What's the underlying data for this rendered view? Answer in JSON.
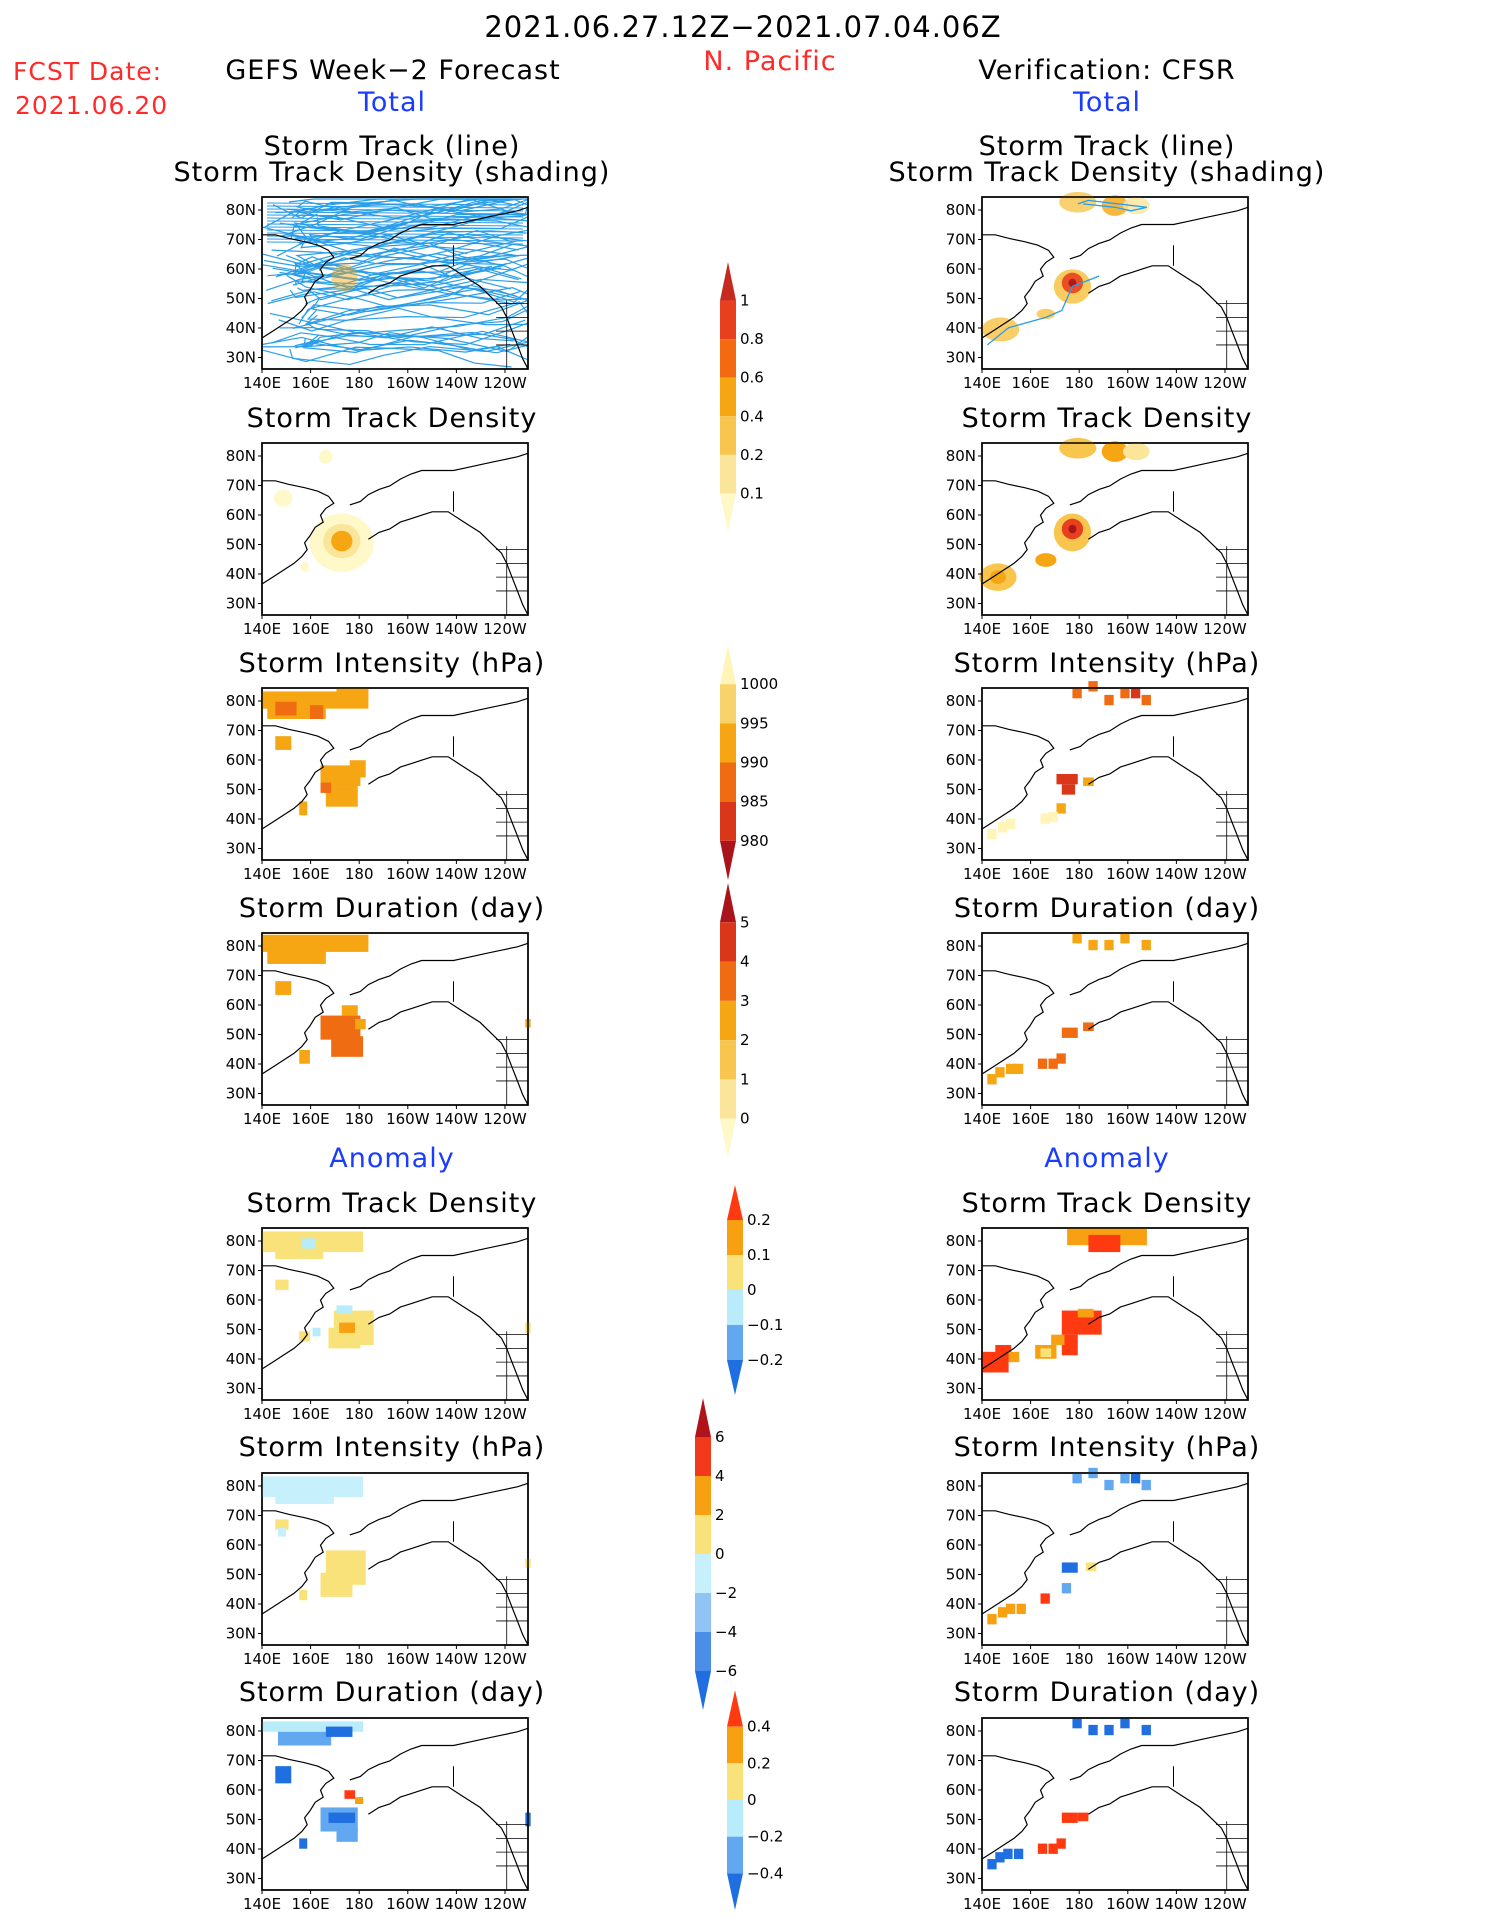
{
  "header": {
    "date_range": "2021.06.27.12Z−2021.07.04.06Z",
    "region": "N. Pacific",
    "fcst_label": "FCST Date:",
    "fcst_date": "2021.06.20",
    "left_title": "GEFS Week−2 Forecast",
    "right_title": "Verification: CFSR",
    "total_label": "Total",
    "anomaly_label": "Anomaly"
  },
  "panel_titles": {
    "track_line": "Storm Track (line)",
    "track_density_shading": "Storm Track Density (shading)",
    "track_density": "Storm Track Density",
    "intensity": "Storm Intensity (hPa)",
    "duration": "Storm Duration (day)"
  },
  "axes": {
    "lat_labels": [
      "80N",
      "70N",
      "60N",
      "50N",
      "40N",
      "30N"
    ],
    "lon_labels": [
      "140E",
      "160E",
      "180",
      "160W",
      "140W",
      "120W"
    ]
  },
  "colorbars": {
    "density_total": {
      "labels": [
        "1",
        "0.8",
        "0.6",
        "0.4",
        "0.2",
        "0.1"
      ],
      "colors": [
        "#c62a1e",
        "#e8401f",
        "#f46a10",
        "#f5a612",
        "#f8c64e",
        "#fbe59a",
        "#fff8c8"
      ]
    },
    "intensity_total": {
      "labels": [
        "1000",
        "995",
        "990",
        "985",
        "980"
      ],
      "colors": [
        "#fff5b8",
        "#f8d26a",
        "#f5a612",
        "#ef6c12",
        "#d9361a",
        "#a8141a"
      ]
    },
    "duration_total": {
      "labels": [
        "5",
        "4",
        "3",
        "2",
        "1",
        "0"
      ],
      "colors": [
        "#a8141a",
        "#d9361a",
        "#ef6c12",
        "#f5a612",
        "#f8c64e",
        "#fbe59a",
        "#fff8c8"
      ]
    },
    "density_anom": {
      "labels": [
        "0.2",
        "0.1",
        "0",
        "−0.1",
        "−0.2"
      ],
      "colors": [
        "#ff3a10",
        "#f7a012",
        "#f9e27a",
        "#b8ecfa",
        "#62a8f0",
        "#1f6fe0"
      ]
    },
    "intensity_anom": {
      "labels": [
        "6",
        "4",
        "2",
        "0",
        "−2",
        "−4",
        "−6"
      ],
      "colors": [
        "#b0141a",
        "#f03a1a",
        "#f7a012",
        "#f9e27a",
        "#c6f0fb",
        "#8fc4f5",
        "#4a8ee8",
        "#1f6fe0"
      ]
    },
    "duration_anom": {
      "labels": [
        "0.4",
        "0.2",
        "0",
        "−0.2",
        "−0.4"
      ],
      "colors": [
        "#ff3a10",
        "#f7a012",
        "#f9e27a",
        "#b8ecfa",
        "#62a8f0",
        "#1f6fe0"
      ]
    }
  },
  "colors": {
    "title_red": "#ff2a2a",
    "title_blue": "#1a3cff",
    "track_line": "#2a9ee8"
  }
}
